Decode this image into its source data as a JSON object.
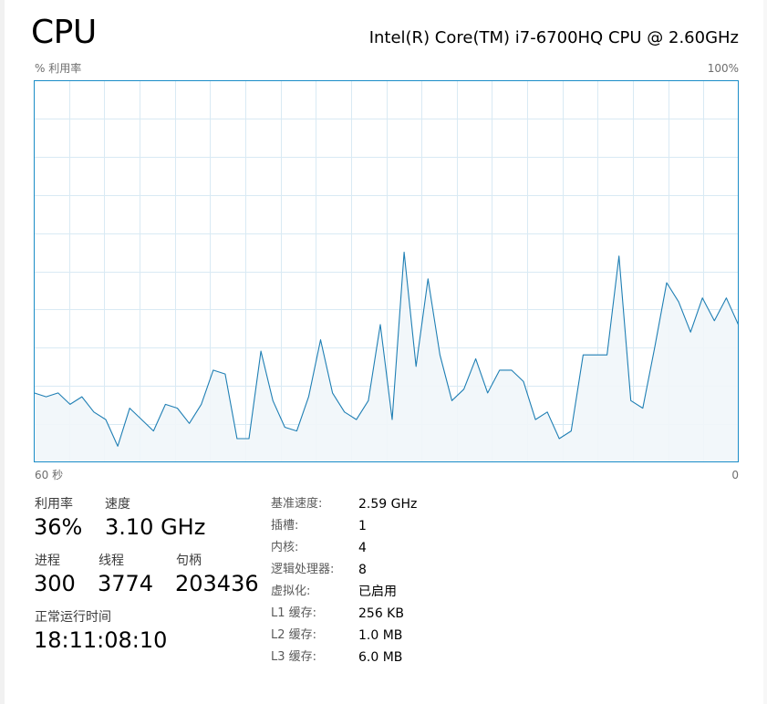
{
  "header": {
    "title": "CPU",
    "cpu_name": "Intel(R) Core(TM) i7-6700HQ CPU @ 2.60GHz"
  },
  "graph": {
    "y_label": "% 利用率",
    "y_max_label": "100%",
    "x_left_label": "60 秒",
    "x_right_label": "0",
    "colors": {
      "border": "#1a8cc7",
      "grid": "#d9eaf4",
      "line": "#1f7fb4",
      "fill": "#f1f6fa"
    }
  },
  "chart_data": {
    "type": "area",
    "x_range_seconds": [
      60,
      0
    ],
    "ylim": [
      0,
      100
    ],
    "grid": true,
    "values": [
      18,
      17,
      18,
      15,
      17,
      13,
      11,
      4,
      14,
      11,
      8,
      15,
      14,
      10,
      15,
      24,
      23,
      6,
      6,
      29,
      16,
      9,
      8,
      17,
      32,
      18,
      13,
      11,
      16,
      36,
      11,
      55,
      25,
      48,
      28,
      16,
      19,
      27,
      18,
      24,
      24,
      21,
      11,
      13,
      6,
      8,
      28,
      28,
      28,
      54,
      16,
      14,
      30,
      47,
      42,
      34,
      43,
      37,
      43,
      36
    ]
  },
  "stats": {
    "utilization": {
      "label": "利用率",
      "value": "36%"
    },
    "speed": {
      "label": "速度",
      "value": "3.10 GHz"
    },
    "processes": {
      "label": "进程",
      "value": "300"
    },
    "threads": {
      "label": "线程",
      "value": "3774"
    },
    "handles": {
      "label": "句柄",
      "value": "203436"
    },
    "uptime": {
      "label": "正常运行时间",
      "value": "18:11:08:10"
    }
  },
  "info": {
    "base_speed": {
      "key": "基准速度:",
      "value": "2.59 GHz"
    },
    "sockets": {
      "key": "插槽:",
      "value": "1"
    },
    "cores": {
      "key": "内核:",
      "value": "4"
    },
    "logical_processors": {
      "key": "逻辑处理器:",
      "value": "8"
    },
    "virtualization": {
      "key": "虚拟化:",
      "value": "已启用"
    },
    "l1_cache": {
      "key": "L1 缓存:",
      "value": "256 KB"
    },
    "l2_cache": {
      "key": "L2 缓存:",
      "value": "1.0 MB"
    },
    "l3_cache": {
      "key": "L3 缓存:",
      "value": "6.0 MB"
    }
  }
}
